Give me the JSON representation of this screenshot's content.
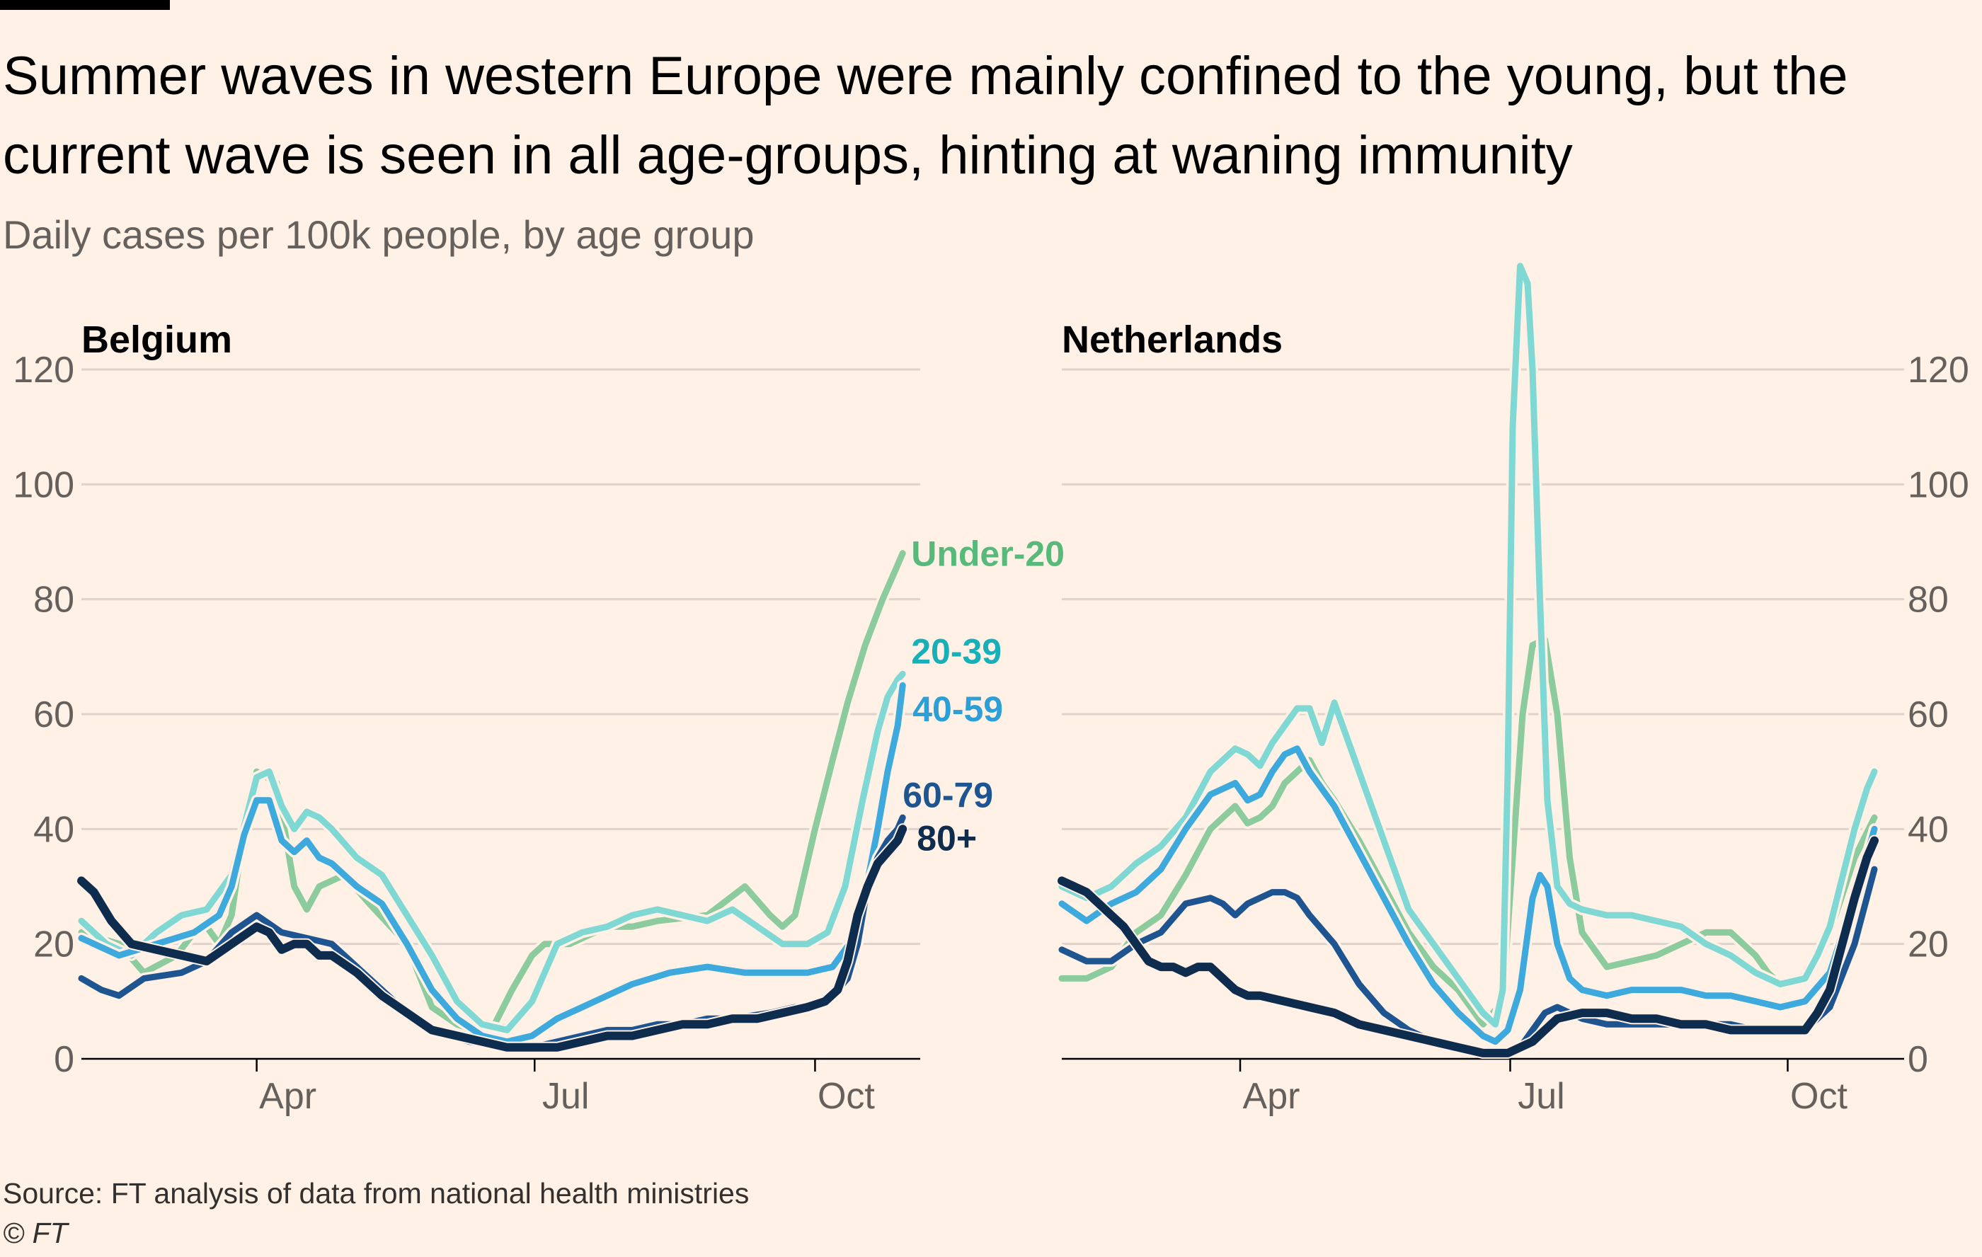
{
  "title": "Summer waves in western Europe were mainly confined to the young, but the current wave is seen in all age-groups, hinting at waning immunity",
  "subtitle": "Daily cases per 100k people, by age group",
  "source": "Source: FT analysis of data from national health ministries",
  "copyright": "© FT",
  "colors": {
    "under20": "#8CCB9E",
    "a20_39": "#7FD8D3",
    "a40_59": "#3EA9DC",
    "a60_79": "#1E5591",
    "a80": "#0D2C4E",
    "label_under20": "#57B97A",
    "label_20_39": "#17B0B8",
    "label_40_59": "#2C9FD6",
    "label_60_79": "#1E5591",
    "label_80": "#0D2C4E",
    "grid": "#DDD3CB",
    "axis": "#66605C"
  },
  "chart_data": [
    {
      "type": "line",
      "panel": "Belgium",
      "xlabel": "",
      "ylabel": "Daily cases per 100k people",
      "ylim": [
        0,
        120
      ],
      "yticks": [
        0,
        20,
        40,
        60,
        80,
        100,
        120
      ],
      "xlim": [
        0,
        335
      ],
      "xticks": [
        {
          "label": "Apr",
          "x": 70
        },
        {
          "label": "Jul",
          "x": 181
        },
        {
          "label": "Oct",
          "x": 293
        }
      ],
      "series": [
        {
          "name": "Under-20",
          "key": "under20",
          "x": [
            0,
            15,
            25,
            38,
            45,
            50,
            55,
            60,
            65,
            70,
            78,
            85,
            90,
            95,
            105,
            115,
            130,
            140,
            150,
            157,
            165,
            172,
            180,
            185,
            195,
            210,
            220,
            230,
            250,
            265,
            275,
            280,
            285,
            293,
            300,
            306,
            313,
            320,
            326,
            328
          ],
          "values": [
            22,
            20,
            15,
            18,
            22,
            23,
            20,
            25,
            40,
            50,
            48,
            30,
            26,
            30,
            32,
            27,
            20,
            9,
            6,
            5,
            6,
            12,
            18,
            20,
            20,
            23,
            23,
            24,
            25,
            30,
            25,
            23,
            25,
            40,
            52,
            62,
            72,
            80,
            86,
            88
          ]
        },
        {
          "name": "20-39",
          "key": "a20_39",
          "x": [
            0,
            10,
            20,
            30,
            40,
            50,
            60,
            70,
            75,
            80,
            85,
            90,
            95,
            100,
            110,
            120,
            130,
            140,
            150,
            160,
            170,
            180,
            190,
            200,
            210,
            220,
            230,
            240,
            250,
            260,
            270,
            280,
            290,
            298,
            305,
            312,
            318,
            322,
            326,
            328
          ],
          "values": [
            24,
            20,
            18,
            22,
            25,
            26,
            32,
            49,
            50,
            44,
            40,
            43,
            42,
            40,
            35,
            32,
            25,
            18,
            10,
            6,
            5,
            10,
            20,
            22,
            23,
            25,
            26,
            25,
            24,
            26,
            23,
            20,
            20,
            22,
            30,
            45,
            57,
            63,
            66,
            67
          ]
        },
        {
          "name": "40-59",
          "key": "a40_59",
          "x": [
            0,
            15,
            30,
            45,
            55,
            60,
            65,
            70,
            75,
            80,
            85,
            90,
            95,
            100,
            110,
            120,
            130,
            140,
            150,
            160,
            170,
            180,
            190,
            200,
            210,
            220,
            235,
            250,
            265,
            280,
            290,
            300,
            310,
            318,
            322,
            326,
            328
          ],
          "values": [
            21,
            18,
            20,
            22,
            25,
            30,
            39,
            45,
            45,
            38,
            36,
            38,
            35,
            34,
            30,
            27,
            20,
            12,
            7,
            4,
            3,
            4,
            7,
            9,
            11,
            13,
            15,
            16,
            15,
            15,
            15,
            16,
            22,
            40,
            50,
            58,
            65
          ]
        },
        {
          "name": "60-79",
          "key": "a60_79",
          "x": [
            0,
            8,
            15,
            25,
            40,
            50,
            60,
            70,
            80,
            90,
            100,
            110,
            120,
            130,
            140,
            155,
            170,
            180,
            190,
            200,
            210,
            220,
            230,
            240,
            250,
            260,
            275,
            285,
            292,
            300,
            306,
            310,
            314,
            318,
            322,
            326,
            328
          ],
          "values": [
            14,
            12,
            11,
            14,
            15,
            17,
            22,
            25,
            22,
            21,
            20,
            16,
            12,
            8,
            5,
            3,
            2,
            2,
            3,
            4,
            5,
            5,
            6,
            6,
            7,
            7,
            8,
            9,
            9,
            11,
            14,
            20,
            30,
            35,
            38,
            40,
            42
          ]
        },
        {
          "name": "80+",
          "key": "a80",
          "x": [
            0,
            5,
            12,
            20,
            30,
            40,
            50,
            60,
            70,
            75,
            80,
            85,
            90,
            95,
            100,
            110,
            120,
            130,
            140,
            150,
            160,
            170,
            180,
            190,
            200,
            210,
            220,
            230,
            240,
            250,
            260,
            270,
            280,
            290,
            297,
            302,
            306,
            310,
            314,
            318,
            322,
            326,
            328
          ],
          "values": [
            31,
            29,
            24,
            20,
            19,
            18,
            17,
            20,
            23,
            22,
            19,
            20,
            20,
            18,
            18,
            15,
            11,
            8,
            5,
            4,
            3,
            2,
            2,
            2,
            3,
            4,
            4,
            5,
            6,
            6,
            7,
            7,
            8,
            9,
            10,
            12,
            17,
            25,
            30,
            34,
            36,
            38,
            40
          ]
        }
      ],
      "end_labels": [
        {
          "key": "under20",
          "text": "Under-20"
        },
        {
          "key": "a20_39",
          "text": "20-39"
        },
        {
          "key": "a40_59",
          "text": "40-59"
        },
        {
          "key": "a60_79",
          "text": "60-79"
        },
        {
          "key": "a80",
          "text": "80+"
        }
      ]
    },
    {
      "type": "line",
      "panel": "Netherlands",
      "xlabel": "",
      "ylabel": "Daily cases per 100k people",
      "ylim": [
        0,
        120
      ],
      "yticks": [
        0,
        20,
        40,
        60,
        80,
        100,
        120
      ],
      "xlim": [
        0,
        330
      ],
      "xticks": [
        {
          "label": "Apr",
          "x": 72
        },
        {
          "label": "Jul",
          "x": 181
        },
        {
          "label": "Oct",
          "x": 293
        }
      ],
      "series": [
        {
          "name": "Under-20",
          "key": "under20",
          "x": [
            0,
            10,
            20,
            30,
            40,
            50,
            60,
            70,
            75,
            80,
            85,
            90,
            95,
            100,
            105,
            110,
            120,
            130,
            140,
            150,
            160,
            170,
            178,
            182,
            186,
            190,
            195,
            200,
            205,
            210,
            220,
            230,
            240,
            250,
            260,
            270,
            280,
            285,
            290,
            300,
            310,
            320,
            328
          ],
          "values": [
            14,
            14,
            16,
            22,
            25,
            32,
            40,
            44,
            41,
            42,
            44,
            48,
            50,
            52,
            48,
            45,
            38,
            30,
            22,
            16,
            12,
            6,
            10,
            35,
            60,
            72,
            73,
            60,
            35,
            22,
            16,
            17,
            18,
            20,
            22,
            22,
            18,
            15,
            13,
            14,
            22,
            35,
            42
          ]
        },
        {
          "name": "20-39",
          "key": "a20_39",
          "x": [
            0,
            10,
            20,
            30,
            40,
            50,
            60,
            70,
            75,
            80,
            85,
            90,
            95,
            100,
            105,
            110,
            120,
            130,
            140,
            150,
            160,
            170,
            175,
            178,
            180,
            182,
            185,
            188,
            190,
            193,
            196,
            200,
            205,
            210,
            220,
            230,
            240,
            250,
            260,
            270,
            280,
            290,
            300,
            305,
            310,
            320,
            325,
            328
          ],
          "values": [
            30,
            28,
            30,
            34,
            37,
            42,
            50,
            54,
            53,
            51,
            55,
            58,
            61,
            61,
            55,
            62,
            50,
            38,
            26,
            20,
            14,
            8,
            6,
            12,
            50,
            110,
            138,
            135,
            120,
            80,
            45,
            30,
            27,
            26,
            25,
            25,
            24,
            23,
            20,
            18,
            15,
            13,
            14,
            18,
            23,
            40,
            47,
            50
          ]
        },
        {
          "name": "40-59",
          "key": "a40_59",
          "x": [
            0,
            10,
            20,
            30,
            40,
            50,
            60,
            70,
            75,
            80,
            85,
            90,
            95,
            100,
            105,
            110,
            120,
            130,
            140,
            150,
            160,
            170,
            175,
            180,
            185,
            190,
            193,
            196,
            200,
            205,
            210,
            220,
            230,
            240,
            250,
            260,
            270,
            280,
            290,
            300,
            310,
            320,
            328
          ],
          "values": [
            27,
            24,
            27,
            29,
            33,
            40,
            46,
            48,
            45,
            46,
            50,
            53,
            54,
            50,
            47,
            44,
            36,
            28,
            20,
            13,
            8,
            4,
            3,
            5,
            12,
            28,
            32,
            30,
            20,
            14,
            12,
            11,
            12,
            12,
            12,
            11,
            11,
            10,
            9,
            10,
            15,
            28,
            40
          ]
        },
        {
          "name": "60-79",
          "key": "a60_79",
          "x": [
            0,
            10,
            20,
            30,
            40,
            50,
            60,
            65,
            70,
            75,
            80,
            85,
            90,
            95,
            100,
            110,
            120,
            130,
            140,
            150,
            160,
            170,
            175,
            180,
            185,
            190,
            195,
            200,
            205,
            210,
            220,
            230,
            240,
            250,
            260,
            270,
            280,
            290,
            300,
            310,
            320,
            328
          ],
          "values": [
            19,
            17,
            17,
            20,
            22,
            27,
            28,
            27,
            25,
            27,
            28,
            29,
            29,
            28,
            25,
            20,
            13,
            8,
            5,
            3,
            2,
            1,
            1,
            1,
            2,
            5,
            8,
            9,
            8,
            7,
            6,
            6,
            6,
            6,
            6,
            6,
            5,
            5,
            5,
            9,
            20,
            33
          ]
        },
        {
          "name": "80+",
          "key": "a80",
          "x": [
            0,
            5,
            10,
            15,
            20,
            25,
            30,
            35,
            40,
            45,
            50,
            55,
            60,
            65,
            70,
            75,
            80,
            90,
            100,
            110,
            120,
            130,
            140,
            150,
            160,
            170,
            175,
            180,
            185,
            190,
            195,
            200,
            210,
            220,
            230,
            240,
            250,
            260,
            270,
            280,
            290,
            300,
            305,
            310,
            315,
            320,
            325,
            328
          ],
          "values": [
            31,
            30,
            29,
            27,
            25,
            23,
            20,
            17,
            16,
            16,
            15,
            16,
            16,
            14,
            12,
            11,
            11,
            10,
            9,
            8,
            6,
            5,
            4,
            3,
            2,
            1,
            1,
            1,
            2,
            3,
            5,
            7,
            8,
            8,
            7,
            7,
            6,
            6,
            5,
            5,
            5,
            5,
            8,
            12,
            20,
            28,
            35,
            38
          ]
        }
      ],
      "end_labels": []
    }
  ]
}
